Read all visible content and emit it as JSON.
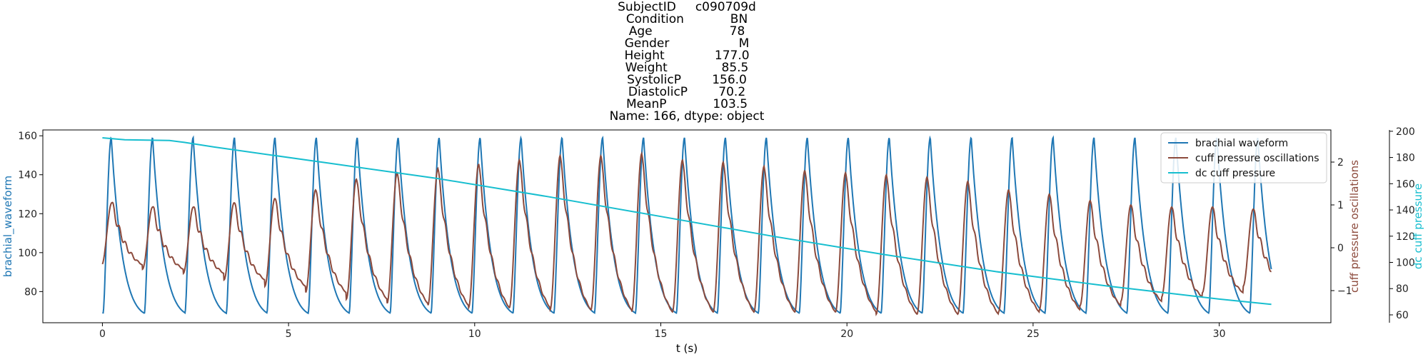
{
  "chart_data": {
    "type": "line",
    "title_lines": [
      "SubjectID     c090709d",
      "Condition            BN",
      "Age                    78",
      "Gender                  M",
      "Height             177.0",
      "Weight              85.5",
      "SystolicP        156.0",
      "DiastolicP        70.2",
      "MeanP            103.5",
      "Name: 166, dtype: object"
    ],
    "xlabel": "t (s)",
    "xlim": [
      -1.6,
      33.0
    ],
    "xticks": [
      0,
      5,
      10,
      15,
      20,
      25,
      30
    ],
    "grid": false,
    "legend_position": "top-right",
    "colors": {
      "brachial": "#1f77b4",
      "cuff_osc": "#8c4a3c",
      "dc_cuff": "#17becf",
      "axes": "#000000"
    },
    "axes": {
      "left": {
        "label": "brachial_waveform",
        "lim": [
          64,
          163
        ],
        "ticks": [
          80,
          100,
          120,
          140,
          160
        ]
      },
      "right1": {
        "label": "cuff pressure oscillations",
        "lim": [
          -1.75,
          2.75
        ],
        "ticks": [
          -1,
          0,
          1,
          2
        ],
        "tick_labels": [
          "−1",
          "0",
          "1",
          "2"
        ]
      },
      "right2": {
        "label": "dc cuff pressure",
        "lim": [
          54,
          201
        ],
        "ticks": [
          60,
          80,
          100,
          120,
          140,
          160,
          180,
          200
        ]
      }
    },
    "series": [
      {
        "name": "brachial waveform",
        "axis": "left",
        "beat_period": 1.095,
        "duration": 31.4,
        "diastolic_min": 69,
        "systolic_peak": 159,
        "peak_times": [
          0.27,
          1.38,
          2.47,
          3.58,
          4.67,
          5.78,
          6.88,
          7.98,
          9.08,
          10.18,
          11.28,
          12.38,
          13.47,
          14.57,
          15.67,
          16.77,
          17.87,
          18.97,
          20.07,
          21.17,
          22.27,
          23.37,
          24.47,
          25.57,
          26.67,
          27.77,
          28.87,
          29.97,
          31.07
        ]
      },
      {
        "name": "cuff pressure oscillations",
        "axis": "right1",
        "beat_period": 1.095,
        "duration": 31.4,
        "peak_amplitudes": [
          1.05,
          0.95,
          0.95,
          1.05,
          1.15,
          1.35,
          1.6,
          1.75,
          1.85,
          1.95,
          2.05,
          2.15,
          2.15,
          2.2,
          2.05,
          2.0,
          1.9,
          1.8,
          1.75,
          1.7,
          1.65,
          1.55,
          1.35,
          1.25,
          1.1,
          1.0,
          0.95,
          0.95,
          0.9
        ],
        "trough_amplitudes": [
          -0.4,
          -0.5,
          -0.6,
          -0.75,
          -0.9,
          -1.05,
          -1.2,
          -1.3,
          -1.35,
          -1.4,
          -1.4,
          -1.45,
          -1.45,
          -1.5,
          -1.5,
          -1.5,
          -1.5,
          -1.5,
          -1.5,
          -1.55,
          -1.55,
          -1.55,
          -1.5,
          -1.45,
          -1.35,
          -1.25,
          -1.15,
          -1.05,
          -0.9
        ]
      },
      {
        "name": "dc cuff pressure",
        "axis": "right2",
        "points": [
          [
            0,
            195
          ],
          [
            0.6,
            193.5
          ],
          [
            1.8,
            193
          ],
          [
            2.2,
            191.5
          ],
          [
            3,
            188
          ],
          [
            6,
            176
          ],
          [
            9,
            164
          ],
          [
            12,
            150
          ],
          [
            15,
            135
          ],
          [
            18,
            120
          ],
          [
            21,
            106
          ],
          [
            24,
            93
          ],
          [
            27,
            82
          ],
          [
            30,
            72
          ],
          [
            31.4,
            68
          ]
        ]
      }
    ]
  }
}
